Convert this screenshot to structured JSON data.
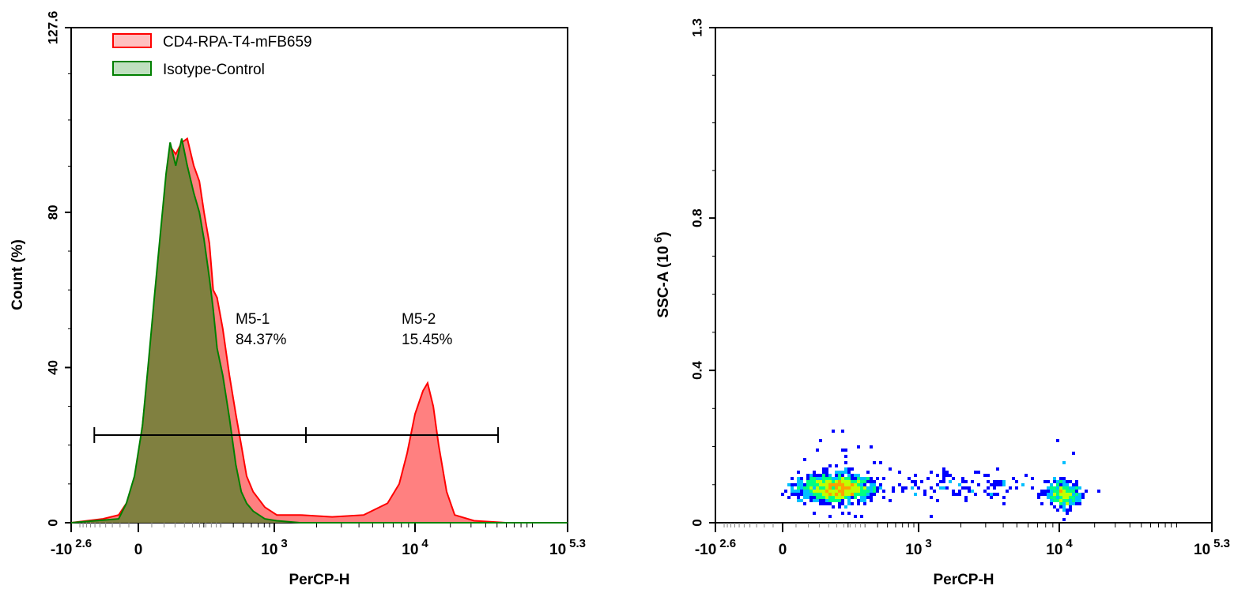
{
  "chart_data": [
    {
      "type": "area",
      "xlabel": "PerCP-H",
      "ylabel": "Count  (%)",
      "x_scale": "biexponential",
      "xlim": [
        -398,
        199526
      ],
      "ylim": [
        0,
        127.6
      ],
      "x_ticks": [
        {
          "value": -398,
          "base": "-10",
          "exp": "2.6"
        },
        {
          "value": 0,
          "base": "0",
          "exp": ""
        },
        {
          "value": 1000,
          "base": "10",
          "exp": "3"
        },
        {
          "value": 10000,
          "base": "10",
          "exp": "4"
        },
        {
          "value": 199526,
          "base": "10",
          "exp": "5.3"
        }
      ],
      "y_ticks": [
        "0",
        "40",
        "80",
        "127.6"
      ],
      "y_tick_values": [
        0,
        40,
        80,
        127.6
      ],
      "legend_position": "top-left",
      "series": [
        {
          "name": "CD4-RPA-T4-mFB659",
          "stroke": "#ff0000",
          "fill": "#ff8080",
          "points": [
            [
              -398,
              0
            ],
            [
              -134,
              1
            ],
            [
              -65,
              2
            ],
            [
              -38,
              5
            ],
            [
              -12,
              10
            ],
            [
              9,
              25
            ],
            [
              23,
              40
            ],
            [
              36,
              55
            ],
            [
              51,
              70
            ],
            [
              65,
              85
            ],
            [
              76,
              97
            ],
            [
              92,
              95
            ],
            [
              111,
              98
            ],
            [
              130,
              99
            ],
            [
              155,
              92
            ],
            [
              179,
              88
            ],
            [
              201,
              80
            ],
            [
              229,
              72
            ],
            [
              251,
              60
            ],
            [
              275,
              58
            ],
            [
              314,
              50
            ],
            [
              366,
              38
            ],
            [
              423,
              28
            ],
            [
              479,
              20
            ],
            [
              540,
              12
            ],
            [
              624,
              8
            ],
            [
              810,
              4
            ],
            [
              1043,
              2
            ],
            [
              1530,
              2
            ],
            [
              2580,
              1.5
            ],
            [
              4320,
              2
            ],
            [
              6380,
              5
            ],
            [
              7720,
              10
            ],
            [
              8800,
              18
            ],
            [
              10000,
              28
            ],
            [
              11700,
              34
            ],
            [
              12800,
              36
            ],
            [
              14300,
              30
            ],
            [
              15900,
              20
            ],
            [
              18600,
              8
            ],
            [
              21800,
              2
            ],
            [
              31900,
              0.5
            ],
            [
              59300,
              0
            ],
            [
              199526,
              0
            ]
          ]
        },
        {
          "name": "Isotype-Control",
          "stroke": "#008000",
          "fill": "#808040",
          "points": [
            [
              -398,
              0
            ],
            [
              -65,
              1
            ],
            [
              -38,
              5
            ],
            [
              -12,
              12
            ],
            [
              9,
              25
            ],
            [
              23,
              42
            ],
            [
              36,
              58
            ],
            [
              51,
              75
            ],
            [
              65,
              90
            ],
            [
              76,
              98
            ],
            [
              92,
              92
            ],
            [
              111,
              99
            ],
            [
              130,
              92
            ],
            [
              155,
              85
            ],
            [
              179,
              80
            ],
            [
              201,
              73
            ],
            [
              229,
              63
            ],
            [
              251,
              55
            ],
            [
              275,
              45
            ],
            [
              314,
              38
            ],
            [
              366,
              27
            ],
            [
              423,
              15
            ],
            [
              479,
              8
            ],
            [
              540,
              5
            ],
            [
              624,
              3
            ],
            [
              810,
              1
            ],
            [
              1043,
              0.5
            ],
            [
              1530,
              0
            ],
            [
              199526,
              0
            ]
          ]
        }
      ],
      "gates": [
        {
          "name": "M5-1",
          "percent": "84.37%",
          "from": -184,
          "to": 1680,
          "level": 22.6
        },
        {
          "name": "M5-2",
          "percent": "15.45%",
          "from": 1680,
          "to": 51000,
          "level": 22.6
        }
      ]
    },
    {
      "type": "scatter",
      "xlabel": "PerCP-H",
      "ylabel": "SSC-A (10",
      "ylabel_exp": "6",
      "ylabel_close": ")",
      "x_scale": "biexponential",
      "xlim": [
        -398,
        199526
      ],
      "ylim": [
        0,
        1.3
      ],
      "x_ticks": [
        {
          "value": -398,
          "base": "-10",
          "exp": "2.6"
        },
        {
          "value": 0,
          "base": "0",
          "exp": ""
        },
        {
          "value": 1000,
          "base": "10",
          "exp": "3"
        },
        {
          "value": 10000,
          "base": "10",
          "exp": "4"
        },
        {
          "value": 199526,
          "base": "10",
          "exp": "5.3"
        }
      ],
      "y_ticks": [
        "0",
        "0.4",
        "0.8",
        "1.3"
      ],
      "y_tick_values": [
        0,
        0.4,
        0.8,
        1.3
      ],
      "color_scale": [
        "#0000ff",
        "#00c0ff",
        "#00ff80",
        "#c0ff00",
        "#ffa000",
        "#ff0000"
      ],
      "populations": [
        {
          "x_center": 150,
          "y_center": 0.09,
          "count": 1400
        },
        {
          "x_center": 11000,
          "y_center": 0.075,
          "count": 350
        },
        {
          "x_center": 2500,
          "y_center": 0.1,
          "count": 120
        }
      ]
    }
  ]
}
